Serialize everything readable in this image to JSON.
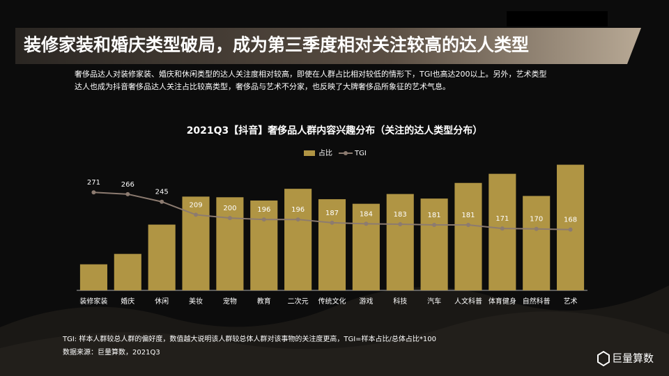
{
  "title": "装修家装和婚庆类型破局，成为第三季度相对关注较高的达人类型",
  "description": [
    "奢侈品达人对装修家装、婚庆和休闲类型的达人关注度相对较高，即使在人群占比相对较低的情形下，TGI也高达200以上。另外，艺术类型",
    "达人也成为抖音奢侈品达人关注占比较高类型，奢侈品与艺术不分家，也反映了大牌奢侈品所象征的艺术气息。"
  ],
  "chart_data": {
    "type": "bar",
    "title": "2021Q3【抖音】奢侈品人群内容兴趣分布（关注的达人类型分布）",
    "categories": [
      "装修家装",
      "婚庆",
      "休闲",
      "美妆",
      "宠物",
      "教育",
      "二次元",
      "传统文化",
      "游戏",
      "科技",
      "汽车",
      "人文科普",
      "体育健身",
      "自然科普",
      "艺术"
    ],
    "series": [
      {
        "name": "占比",
        "type": "bar",
        "color": "#b09544",
        "values": [
          4.0,
          5.6,
          10.1,
          14.4,
          14.3,
          13.8,
          15.6,
          14.0,
          13.3,
          14.8,
          14.1,
          16.5,
          17.9,
          14.5,
          19.3
        ]
      },
      {
        "name": "TGI",
        "type": "line",
        "axis": "y2",
        "color": "#8c7b70",
        "values": [
          271,
          266,
          245,
          209,
          200,
          196,
          196,
          187,
          184,
          183,
          181,
          181,
          171,
          170,
          168
        ]
      }
    ],
    "ylim": [
      0,
      20
    ],
    "y2lim": [
      0,
      360
    ],
    "legend": "top"
  },
  "footnotes": [
    "TGI: 样本人群较总人群的偏好度，数值越大说明该人群较总体人群对该事物的关注度更高，TGI=样本占比/总体占比*100",
    "数据来源：巨量算数，2021Q3"
  ],
  "logo": "巨量算数"
}
